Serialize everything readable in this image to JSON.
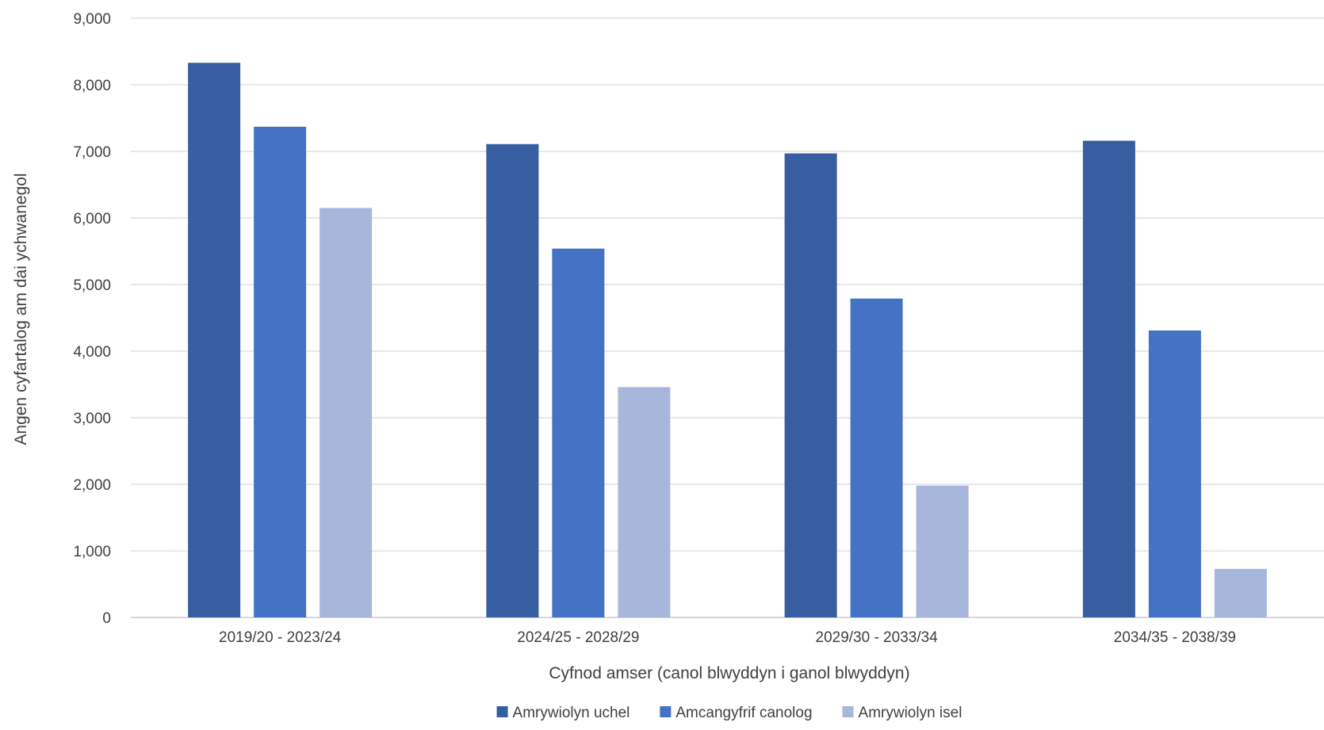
{
  "chart_data": {
    "type": "bar",
    "categories": [
      "2019/20 - 2023/24",
      "2024/25 - 2028/29",
      "2029/30 - 2033/34",
      "2034/35 - 2038/39"
    ],
    "series": [
      {
        "name": "Amrywiolyn uchel",
        "color": "#375ea1",
        "values": [
          8330,
          7110,
          6970,
          7160
        ]
      },
      {
        "name": "Amcangyfrif canolog",
        "color": "#4472c4",
        "values": [
          7370,
          5540,
          4790,
          4310
        ]
      },
      {
        "name": "Amrywiolyn isel",
        "color": "#a9b6db",
        "values": [
          6150,
          3460,
          1980,
          730
        ]
      }
    ],
    "xlabel": "Cyfnod amser (canol blwyddyn i ganol blwyddyn)",
    "ylabel": "Angen cyfartalog am dai ychwanegol",
    "ylim": [
      0,
      9000
    ],
    "yticks": [
      "0",
      "1,000",
      "2,000",
      "3,000",
      "4,000",
      "5,000",
      "6,000",
      "7,000",
      "8,000",
      "9,000"
    ],
    "grid": true,
    "legend_position": "bottom"
  }
}
